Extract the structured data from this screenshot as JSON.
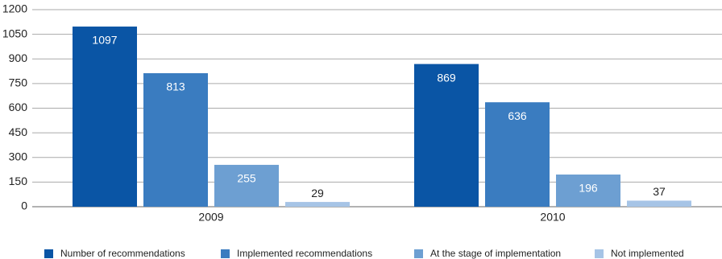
{
  "chart_data": {
    "type": "bar",
    "categories": [
      "2009",
      "2010"
    ],
    "series": [
      {
        "name": "Number of recommendations",
        "color": "#0a55a5",
        "values": [
          1097,
          869
        ]
      },
      {
        "name": "Implemented recommendations",
        "color": "#3a7cc0",
        "values": [
          813,
          636
        ]
      },
      {
        "name": "At the stage of implementation",
        "color": "#6d9fd2",
        "values": [
          255,
          196
        ]
      },
      {
        "name": "Not implemented",
        "color": "#a6c4e6",
        "values": [
          29,
          37
        ]
      }
    ],
    "ylim": [
      0,
      1200
    ],
    "yticks": [
      0,
      150,
      300,
      450,
      600,
      750,
      900,
      1050,
      1200
    ],
    "grid": true,
    "legend": "bottom"
  }
}
